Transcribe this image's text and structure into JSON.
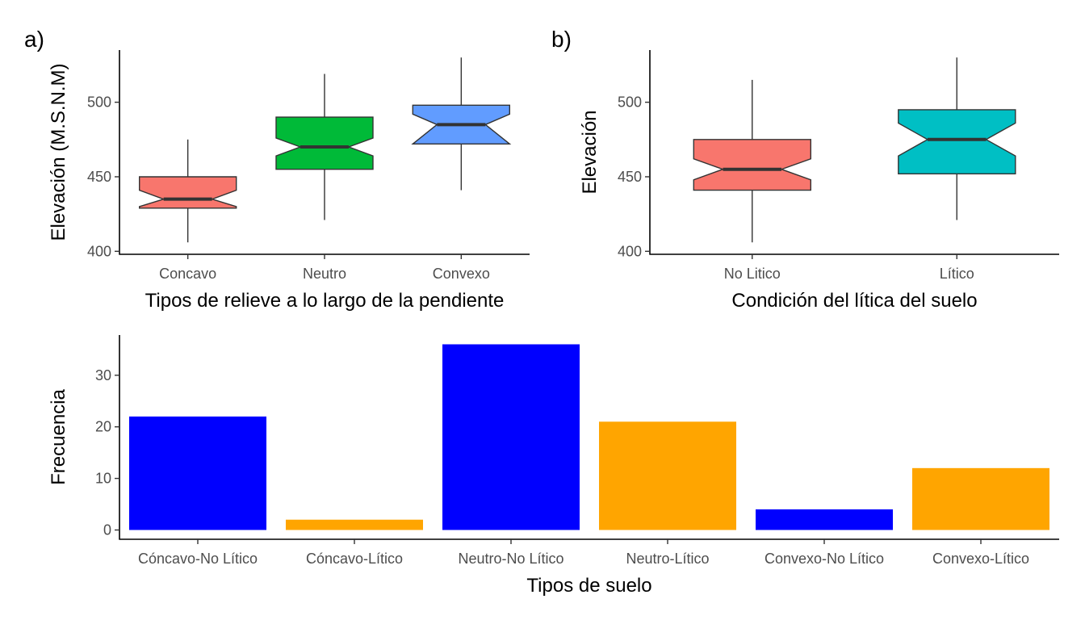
{
  "chart_data": [
    {
      "type": "boxplot",
      "panel_label": "a)",
      "xlabel": "Tipos de relieve a lo largo de la pendiente",
      "ylabel": "Elevación (M.S.N.M)",
      "ylim": [
        398,
        535
      ],
      "yticks": [
        400,
        450,
        500
      ],
      "notched": true,
      "grid": false,
      "categories": [
        "Concavo",
        "Neutro",
        "Convexo"
      ],
      "boxes": [
        {
          "category": "Concavo",
          "min": 406,
          "q1": 429,
          "median": 435,
          "q3": 450,
          "max": 475,
          "notch_low": 430,
          "notch_high": 441,
          "color": "#F8766D"
        },
        {
          "category": "Neutro",
          "min": 421,
          "q1": 455,
          "median": 470,
          "q3": 490,
          "max": 519,
          "notch_low": 464,
          "notch_high": 476,
          "color": "#00BA38"
        },
        {
          "category": "Convexo",
          "min": 441,
          "q1": 472,
          "median": 485,
          "q3": 498,
          "max": 530,
          "notch_low": 472,
          "notch_high": 492,
          "color": "#619CFF"
        }
      ]
    },
    {
      "type": "boxplot",
      "panel_label": "b)",
      "xlabel": "Condición del lítica del suelo",
      "ylabel": "Elevación",
      "ylim": [
        398,
        535
      ],
      "yticks": [
        400,
        450,
        500
      ],
      "notched": true,
      "grid": false,
      "categories": [
        "No Litico",
        "Lítico"
      ],
      "boxes": [
        {
          "category": "No Litico",
          "min": 406,
          "q1": 441,
          "median": 455,
          "q3": 475,
          "max": 515,
          "notch_low": 448,
          "notch_high": 462,
          "color": "#F8766D"
        },
        {
          "category": "Lítico",
          "min": 421,
          "q1": 452,
          "median": 475,
          "q3": 495,
          "max": 530,
          "notch_low": 464,
          "notch_high": 486,
          "color": "#00BFC4"
        }
      ]
    },
    {
      "type": "bar",
      "xlabel": "Tipos de suelo",
      "ylabel": "Frecuencia",
      "ylim": [
        -1.8,
        37.8
      ],
      "yticks": [
        0,
        10,
        20,
        30
      ],
      "grid": false,
      "categories": [
        "Cóncavo-No Lítico",
        "Cóncavo-Lítico",
        "Neutro-No Lítico",
        "Neutro-Lítico",
        "Convexo-No Lítico",
        "Convexo-Lítico"
      ],
      "values": [
        22,
        2,
        36,
        21,
        4,
        12
      ],
      "colors": [
        "#0000FF",
        "#FFA500",
        "#0000FF",
        "#FFA500",
        "#0000FF",
        "#FFA500"
      ]
    }
  ]
}
